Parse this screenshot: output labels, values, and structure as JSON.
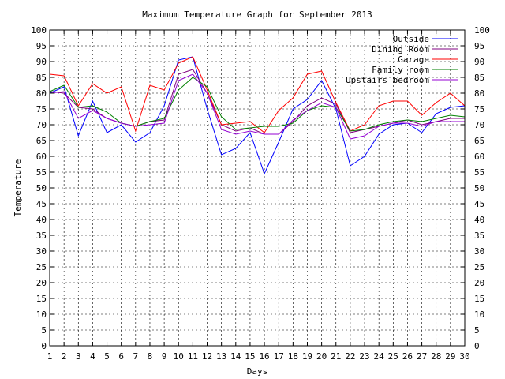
{
  "chart_data": {
    "type": "line",
    "title": "Maximum Temperature Graph for September 2013",
    "xlabel": "Days",
    "ylabel": "Temperature",
    "xlim": [
      1,
      30
    ],
    "ylim": [
      0,
      100
    ],
    "x_ticks": [
      1,
      2,
      3,
      4,
      5,
      6,
      7,
      8,
      9,
      10,
      11,
      12,
      13,
      14,
      15,
      16,
      17,
      18,
      19,
      20,
      21,
      22,
      23,
      24,
      25,
      26,
      27,
      28,
      29,
      30
    ],
    "y_ticks": [
      0,
      5,
      10,
      15,
      20,
      25,
      30,
      35,
      40,
      45,
      50,
      55,
      60,
      65,
      70,
      75,
      80,
      85,
      90,
      95,
      100
    ],
    "right_axis_mirrored": true,
    "grid": true,
    "legend_position": "top-right",
    "x": [
      1,
      2,
      3,
      4,
      5,
      6,
      7,
      8,
      9,
      10,
      11,
      12,
      13,
      14,
      15,
      16,
      17,
      18,
      19,
      20,
      21,
      22,
      23,
      24,
      25,
      26,
      27,
      28,
      29,
      30
    ],
    "series": [
      {
        "name": "Outside",
        "color": "#0000ff",
        "values": [
          80,
          82,
          66.5,
          77.5,
          67.5,
          70,
          64.5,
          67.5,
          76,
          90.5,
          91.5,
          75,
          60.5,
          62.5,
          67.5,
          54.5,
          64.5,
          75,
          78,
          84,
          75,
          57,
          60,
          67,
          70,
          70.5,
          67.5,
          73.5,
          75.5,
          76
        ]
      },
      {
        "name": "Dining Room",
        "color": "#800080",
        "values": [
          80.5,
          80,
          75.5,
          75,
          72,
          70.5,
          69.5,
          71,
          71.5,
          86,
          87.5,
          80,
          70,
          68,
          69,
          67,
          67,
          71,
          76,
          78.5,
          76.5,
          67.5,
          68.5,
          69.5,
          70.5,
          71.5,
          70,
          71,
          72,
          72
        ]
      },
      {
        "name": "Garage",
        "color": "#ff0000",
        "values": [
          86,
          85.5,
          76,
          83,
          80,
          82,
          68,
          82.5,
          81,
          89.5,
          91.5,
          81,
          70,
          70.5,
          71,
          67.5,
          74.5,
          78.5,
          86,
          87,
          77,
          68,
          70,
          76,
          77.5,
          77.5,
          73,
          77,
          80,
          76
        ]
      },
      {
        "name": "Family room",
        "color": "#008000",
        "values": [
          80.5,
          82.5,
          75.5,
          76,
          74,
          70.5,
          69.5,
          71,
          72,
          81,
          85,
          82,
          72.5,
          68.5,
          69,
          69.5,
          69.5,
          70.5,
          74.5,
          76,
          75.5,
          68,
          68.5,
          70,
          71,
          71.5,
          71,
          72,
          73,
          72.5
        ]
      },
      {
        "name": "Upstairs bedroom",
        "color": "#9400d3",
        "values": [
          80,
          80.5,
          72,
          74.5,
          72,
          70.5,
          69.5,
          70,
          70.5,
          84,
          86,
          80,
          68.5,
          67,
          68,
          67,
          67,
          71.5,
          74.5,
          77,
          75.5,
          65.5,
          66.5,
          69.5,
          70.5,
          70.5,
          69.5,
          71,
          71,
          71
        ]
      }
    ]
  }
}
